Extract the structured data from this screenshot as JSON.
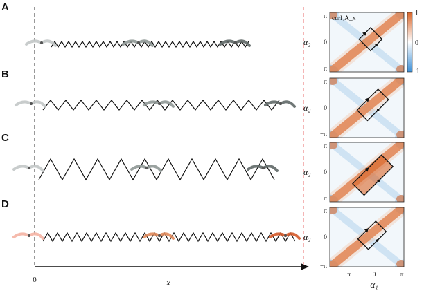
{
  "rows": [
    {
      "letter": "A"
    },
    {
      "letter": "B"
    },
    {
      "letter": "C"
    },
    {
      "letter": "D"
    }
  ],
  "axis": {
    "origin_label": "0",
    "x_label": "x"
  },
  "heatmap": {
    "y_label": "α₂",
    "x_label": "α₁",
    "tick_labels": [
      "−π",
      "0",
      "π"
    ],
    "colorbar_label": "curl₂A_x",
    "colorbar_ticks": [
      "1",
      "0",
      "−1"
    ],
    "colors": {
      "positive": "#d9662a",
      "negative": "#3d8fd6",
      "zero": "#ffffff"
    }
  },
  "colors": {
    "robot_gray": [
      "#c2c7c6",
      "#8f9896",
      "#5f6867"
    ],
    "robot_orange": [
      "#f4b3a3",
      "#e08a5b",
      "#d45a2a"
    ],
    "left_line": "#333333",
    "right_line": "#e86b6b"
  }
}
